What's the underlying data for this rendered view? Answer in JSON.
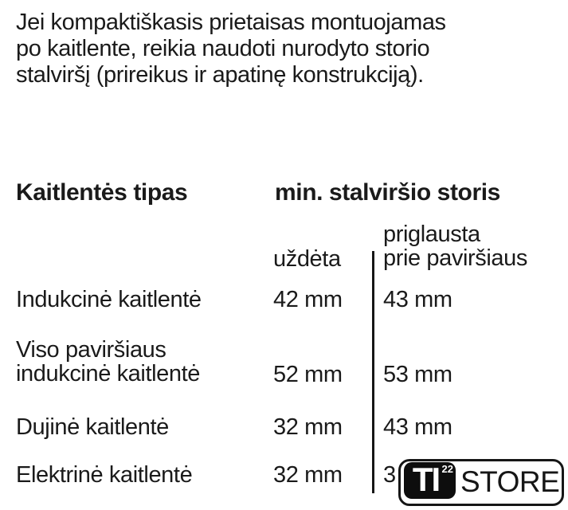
{
  "intro": {
    "lines": [
      "Jei kompaktiškasis prietaisas montuojamas",
      "po kaitlente, reikia naudoti nurodyto storio",
      "stalviršį (prireikus ir apatinę konstrukciją)."
    ]
  },
  "table": {
    "header_col1": "Kaitlentės tipas",
    "header_col2": "min. stalviršio storis",
    "subheader_attached": "uždėta",
    "subheader_flush_line1": "priglausta",
    "subheader_flush_line2": "prie paviršiaus",
    "rows": [
      {
        "label": "Indukcinė kaitlentė",
        "attached": "42 mm",
        "flush": "43 mm"
      },
      {
        "label_line1": "Viso paviršiaus",
        "label_line2": "indukcinė kaitlentė",
        "attached": "52 mm",
        "flush": "53 mm"
      },
      {
        "label": "Dujinė kaitlentė",
        "attached": "32 mm",
        "flush": "43 mm"
      },
      {
        "label": "Elektrinė kaitlentė",
        "attached": "32 mm",
        "flush": "3"
      }
    ]
  },
  "logo": {
    "badge": "TI",
    "superscript": "22",
    "wordmark": "STORE"
  },
  "colors": {
    "text": "#1a1a1a",
    "background": "#ffffff",
    "logo_black": "#0d0d0d"
  }
}
